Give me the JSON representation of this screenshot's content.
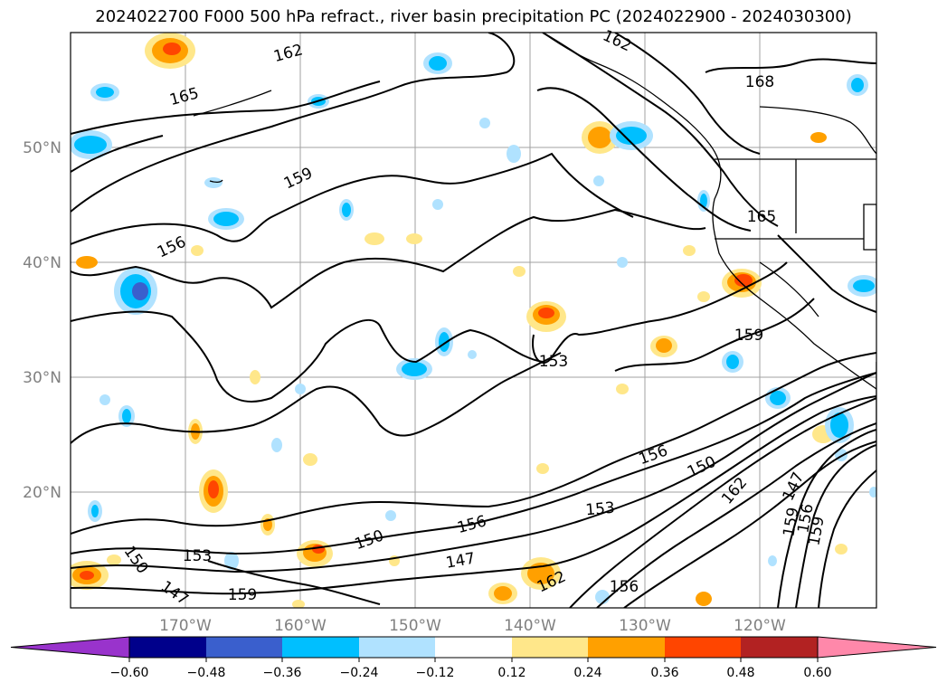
{
  "title": "2024022700 F000 500 hPa refract., river basin precipitation PC (2024022900 - 2024030300)",
  "lat_labels": [
    "50°N",
    "40°N",
    "30°N",
    "20°N"
  ],
  "lon_labels": [
    "170°W",
    "160°W",
    "150°W",
    "140°W",
    "130°W",
    "120°W"
  ],
  "contour_labels": [
    "162",
    "165",
    "159",
    "156",
    "162",
    "168",
    "165",
    "159",
    "153",
    "156",
    "150",
    "162",
    "153",
    "147",
    "156",
    "150",
    "159",
    "156",
    "159",
    "147",
    "153",
    "150",
    "147",
    "159",
    "162",
    "156"
  ],
  "colorbar": {
    "ticks": [
      "−0.60",
      "−0.48",
      "−0.36",
      "−0.24",
      "−0.12",
      "0.12",
      "0.24",
      "0.36",
      "0.48",
      "0.60"
    ],
    "colors": [
      "#9933cc",
      "#00008b",
      "#3a5fcd",
      "#00bfff",
      "#b0e2ff",
      "#ffffff",
      "#ffe78a",
      "#ffa000",
      "#ff4500",
      "#b22222",
      "#ff88aa"
    ]
  },
  "positive_colors": [
    "#ffe78a",
    "#ffa000",
    "#ff4500"
  ],
  "negative_colors": [
    "#b0e2ff",
    "#00bfff",
    "#3a5fcd"
  ]
}
